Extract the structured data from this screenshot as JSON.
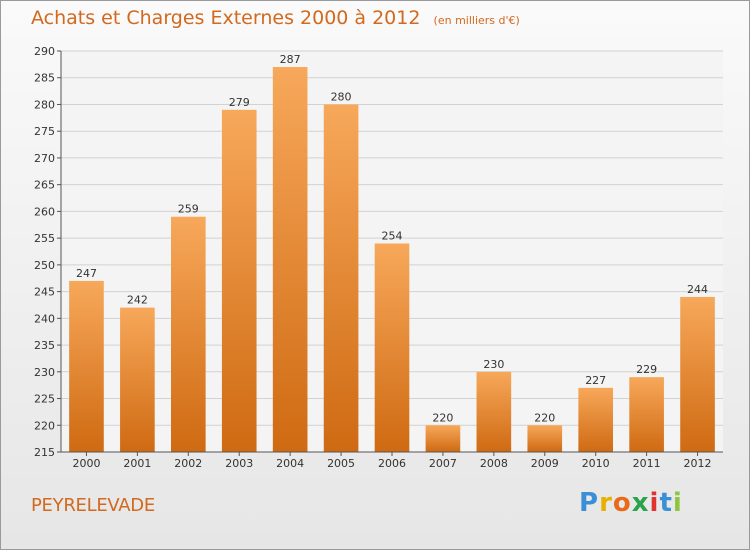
{
  "chart_data": {
    "type": "bar",
    "title": "Achats et Charges Externes 2000 à 2012",
    "subtitle": "(en milliers d'€)",
    "categories": [
      "2000",
      "2001",
      "2002",
      "2003",
      "2004",
      "2005",
      "2006",
      "2007",
      "2008",
      "2009",
      "2010",
      "2011",
      "2012"
    ],
    "values": [
      247,
      242,
      259,
      279,
      287,
      280,
      254,
      220,
      230,
      220,
      227,
      229,
      244
    ],
    "ylim": [
      215,
      290
    ],
    "yticks": [
      215,
      220,
      225,
      230,
      235,
      240,
      245,
      250,
      255,
      260,
      265,
      270,
      275,
      280,
      285,
      290
    ],
    "grid": true,
    "colors": {
      "bar_top": "#f7a85a",
      "bar_bottom": "#cf6a12",
      "grid": "#d2d2d2",
      "text_accent": "#d2691e"
    }
  },
  "footer": {
    "commune": "PEYRELEVADE",
    "logo_letters": [
      "P",
      "r",
      "o",
      "x",
      "i",
      "t",
      "i"
    ],
    "logo_colors": [
      "#3a8fd6",
      "#e8b000",
      "#e86a1a",
      "#2aa34a",
      "#e0322e",
      "#3a8fd6",
      "#8cc63f"
    ]
  }
}
